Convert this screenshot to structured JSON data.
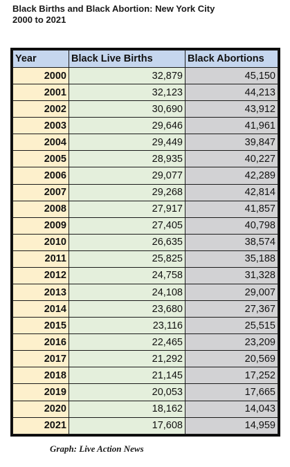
{
  "title": {
    "line1": "Black Births and Black Abortion: New York City",
    "line2": "2000 to 2021"
  },
  "table": {
    "headers": [
      "Year",
      "Black Live Births",
      "Black Abortions"
    ],
    "rows": [
      [
        "2000",
        "32,879",
        "45,150"
      ],
      [
        "2001",
        "32,123",
        "44,213"
      ],
      [
        "2002",
        "30,690",
        "43,912"
      ],
      [
        "2003",
        "29,646",
        "41,961"
      ],
      [
        "2004",
        "29,449",
        "39,847"
      ],
      [
        "2005",
        "28,935",
        "40,227"
      ],
      [
        "2006",
        "29,077",
        "42,289"
      ],
      [
        "2007",
        "29,268",
        "42,814"
      ],
      [
        "2008",
        "27,917",
        "41,857"
      ],
      [
        "2009",
        "27,405",
        "40,798"
      ],
      [
        "2010",
        "26,635",
        "38,574"
      ],
      [
        "2011",
        "25,825",
        "35,188"
      ],
      [
        "2012",
        "24,758",
        "31,328"
      ],
      [
        "2013",
        "24,108",
        "29,007"
      ],
      [
        "2014",
        "23,680",
        "27,367"
      ],
      [
        "2015",
        "23,116",
        "25,515"
      ],
      [
        "2016",
        "22,465",
        "23,209"
      ],
      [
        "2017",
        "21,292",
        "20,569"
      ],
      [
        "2018",
        "21,145",
        "17,252"
      ],
      [
        "2019",
        "20,053",
        "17,665"
      ],
      [
        "2020",
        "18,162",
        "14,043"
      ],
      [
        "2021",
        "17,608",
        "14,959"
      ]
    ]
  },
  "credit": "Graph: Live Action News",
  "colors": {
    "header_bg": "#c5d6ee",
    "year_bg": "#fdf0cc",
    "births_bg": "#e4efdc",
    "abortions_bg": "#d2d2d4",
    "border": "#0d0d0d"
  }
}
